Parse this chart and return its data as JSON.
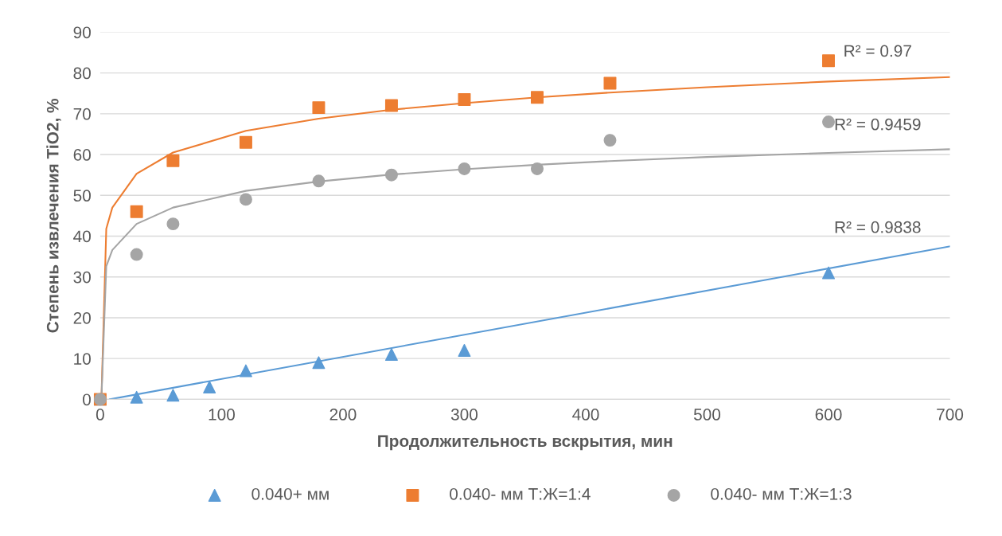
{
  "chart_data": {
    "type": "scatter",
    "xlabel": "Продолжительность вскрытия, мин",
    "ylabel": "Степень извлечения TiO2, %",
    "xlim": [
      0,
      700
    ],
    "xticks": [
      0,
      100,
      200,
      300,
      400,
      500,
      600,
      700
    ],
    "ylim": [
      0,
      90
    ],
    "yticks": [
      0,
      10,
      20,
      30,
      40,
      50,
      60,
      70,
      80,
      90
    ],
    "grid": "y",
    "legend": "bottom",
    "series": [
      {
        "name": "0.040+ мм",
        "color": "#5b9bd5",
        "marker": "triangle",
        "x": [
          0,
          30,
          60,
          90,
          120,
          180,
          240,
          300,
          600
        ],
        "values": [
          0,
          0.5,
          1,
          3,
          7,
          9,
          11,
          12,
          31
        ]
      },
      {
        "name": "0.040- мм Т:Ж=1:4",
        "color": "#ed7d31",
        "marker": "square",
        "x": [
          0,
          30,
          60,
          120,
          180,
          240,
          300,
          360,
          420,
          600
        ],
        "values": [
          0,
          46,
          58.5,
          63,
          71.5,
          72,
          73.5,
          74,
          77.5,
          83
        ]
      },
      {
        "name": "0.040- мм Т:Ж=1:3",
        "color": "#a5a5a5",
        "marker": "circle",
        "x": [
          0,
          30,
          60,
          120,
          180,
          240,
          300,
          360,
          420,
          600
        ],
        "values": [
          0,
          35.5,
          43,
          49,
          53.5,
          55,
          56.5,
          56.5,
          63.5,
          68
        ]
      },
      {
        "type": "line",
        "color": "#5b9bd5",
        "marker": "none",
        "x": [
          8,
          700
        ],
        "values": [
          0,
          37.5
        ]
      },
      {
        "type": "line",
        "color": "#ed7d31",
        "marker": "none",
        "x": [
          1,
          5,
          10,
          30,
          60,
          120,
          180,
          240,
          300,
          360,
          420,
          500,
          600,
          700
        ],
        "values": [
          0,
          41.8,
          47.0,
          55.3,
          60.5,
          65.8,
          68.8,
          71.0,
          72.6,
          74.0,
          75.2,
          76.5,
          77.9,
          79.0
        ]
      },
      {
        "type": "line",
        "color": "#a5a5a5",
        "marker": "none",
        "x": [
          1,
          5,
          10,
          30,
          60,
          120,
          180,
          240,
          300,
          360,
          420,
          500,
          600,
          700
        ],
        "values": [
          0,
          32.6,
          36.6,
          43.0,
          47.0,
          51.1,
          53.4,
          55.1,
          56.4,
          57.5,
          58.4,
          59.4,
          60.4,
          61.3
        ]
      }
    ],
    "annotations": [
      "R² = 0.97",
      "R² = 0.9459",
      "R² = 0.9838"
    ]
  }
}
